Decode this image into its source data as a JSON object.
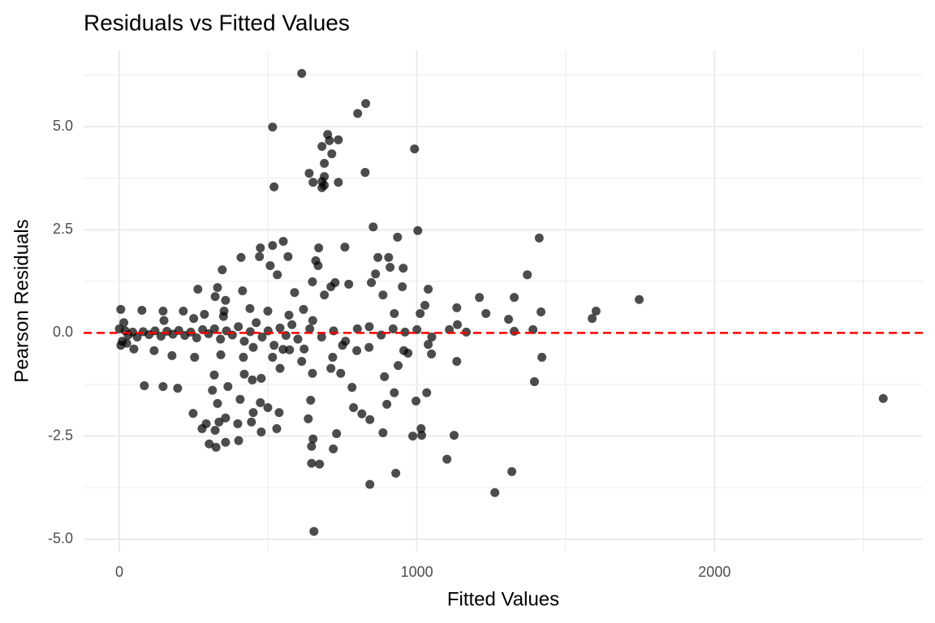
{
  "chart_data": {
    "type": "scatter",
    "title": "Residuals vs Fitted Values",
    "x_label": "Fitted Values",
    "y_label": "Pearson Residuals",
    "xlim": [
      -120,
      2700
    ],
    "ylim": [
      -5.3,
      6.85
    ],
    "xticks": [
      0,
      1000,
      2000
    ],
    "xminor": [
      500,
      1500,
      2500
    ],
    "yticks": [
      {
        "value": -5,
        "label": "-5.0"
      },
      {
        "value": -2.5,
        "label": "-2.5"
      },
      {
        "value": 0,
        "label": "0.0"
      },
      {
        "value": 2.5,
        "label": "2.5"
      },
      {
        "value": 5,
        "label": "5.0"
      }
    ],
    "yminor": [
      -3.75,
      -1.25,
      1.25,
      3.75,
      6.25
    ],
    "grid": true,
    "color": "#000000",
    "opacity": 0.7,
    "hline": {
      "value": 0,
      "color": "#ff0000"
    },
    "x": [
      613,
      801,
      828,
      515,
      700,
      706,
      681,
      736,
      714,
      992,
      689,
      826,
      638,
      689,
      689,
      681,
      736,
      520,
      651,
      681,
      853,
      1003,
      1411,
      935,
      758,
      551,
      515,
      474,
      670,
      471,
      567,
      869,
      905,
      409,
      660,
      507,
      910,
      668,
      346,
      954,
      1371,
      531,
      861,
      649,
      725,
      711,
      951,
      1038,
      264,
      330,
      414,
      771,
      847,
      589,
      689,
      1210,
      1327,
      1747,
      886,
      1027,
      1602,
      1589,
      1308,
      1417,
      1232,
      1011,
      924,
      215,
      147,
      5,
      76,
      352,
      286,
      499,
      570,
      322,
      357,
      439,
      619,
      1134,
      1390,
      1327,
      1136,
      1109,
      1166,
      1420,
      1395,
      1134,
      1049,
      1038,
      970,
      956,
      891,
      937,
      924,
      997,
      1033,
      899,
      815,
      842,
      787,
      744,
      782,
      649,
      711,
      613,
      540,
      477,
      447,
      420,
      319,
      365,
      313,
      406,
      330,
      474,
      499,
      537,
      450,
      444,
      248,
      196,
      147,
      84,
      529,
      477,
      635,
      643,
      398,
      357,
      335,
      292,
      322,
      278,
      302,
      325,
      357,
      401,
      730,
      886,
      986,
      1014,
      1016,
      1125,
      651,
      646,
      719,
      646,
      673,
      1101,
      1319,
      929,
      842,
      1262,
      654,
      2567,
      621,
      572,
      515,
      417,
      341,
      253,
      177,
      117,
      49,
      717,
      798,
      839,
      0,
      10,
      20,
      30,
      45,
      60,
      80,
      100,
      120,
      140,
      160,
      180,
      200,
      220,
      240,
      260,
      280,
      300,
      320,
      340,
      360,
      380,
      400,
      420,
      440,
      460,
      480,
      500,
      520,
      540,
      560,
      580,
      600,
      640,
      680,
      720,
      760,
      800,
      840,
      880,
      920,
      960,
      1000,
      1050,
      5,
      15,
      25,
      150,
      250,
      350,
      450,
      550,
      650,
      750
    ],
    "values": [
      6.29,
      5.32,
      5.56,
      4.99,
      4.81,
      4.66,
      4.52,
      4.68,
      4.34,
      4.46,
      4.11,
      3.89,
      3.87,
      3.79,
      3.58,
      3.52,
      3.65,
      3.54,
      3.65,
      3.67,
      2.57,
      2.48,
      2.3,
      2.32,
      2.08,
      2.22,
      2.12,
      2.06,
      2.06,
      1.85,
      1.85,
      1.83,
      1.83,
      1.83,
      1.75,
      1.63,
      1.59,
      1.63,
      1.53,
      1.57,
      1.41,
      1.41,
      1.43,
      1.24,
      1.22,
      1.12,
      1.12,
      1.06,
      1.06,
      1.1,
      1.02,
      1.18,
      1.22,
      0.98,
      0.92,
      0.86,
      0.86,
      0.81,
      0.92,
      0.67,
      0.53,
      0.35,
      0.33,
      0.51,
      0.47,
      0.47,
      0.47,
      0.53,
      0.53,
      0.57,
      0.55,
      0.53,
      0.45,
      0.53,
      0.43,
      0.88,
      0.79,
      0.59,
      0.57,
      0.61,
      0.08,
      0.04,
      0.2,
      0.08,
      0.02,
      -0.59,
      -1.18,
      -0.69,
      -0.51,
      -0.28,
      -0.49,
      -0.43,
      -1.06,
      -0.79,
      -1.45,
      -1.65,
      -1.45,
      -1.73,
      -1.96,
      -2.1,
      -1.81,
      -0.98,
      -1.32,
      -0.98,
      -0.86,
      -0.69,
      -0.86,
      -1.1,
      -1.14,
      -1,
      -1.02,
      -1.3,
      -1.39,
      -1.61,
      -1.71,
      -1.69,
      -1.81,
      -1.93,
      -1.93,
      -2.16,
      -1.95,
      -1.34,
      -1.3,
      -1.28,
      -2.32,
      -2.4,
      -2.08,
      -1.63,
      -2.2,
      -2.06,
      -2.16,
      -2.2,
      -2.36,
      -2.32,
      -2.69,
      -2.77,
      -2.65,
      -2.61,
      -2.44,
      -2.42,
      -2.5,
      -2.32,
      -2.48,
      -2.48,
      -2.57,
      -2.75,
      -2.81,
      -3.16,
      -3.18,
      -3.06,
      -3.36,
      -3.4,
      -3.67,
      -3.87,
      -4.81,
      -1.59,
      -0.39,
      -0.41,
      -0.59,
      -0.59,
      -0.53,
      -0.59,
      -0.55,
      -0.43,
      -0.39,
      -0.59,
      -0.43,
      -0.35,
      0.1,
      -0.2,
      0.05,
      -0.05,
      0.02,
      -0.1,
      0.03,
      -0.04,
      0.05,
      -0.08,
      0.04,
      -0.03,
      0.06,
      -0.06,
      0.02,
      -0.12,
      0.08,
      -0.02,
      0.1,
      -0.15,
      0.05,
      -0.05,
      0.15,
      -0.2,
      0.03,
      0.25,
      -0.1,
      0.05,
      -0.3,
      0.12,
      -0.06,
      0.2,
      -0.15,
      0.1,
      -0.1,
      0.05,
      -0.2,
      0.1,
      0.15,
      -0.05,
      0.1,
      0.02,
      0.08,
      -0.1,
      -0.3,
      0.25,
      -0.25,
      0.3,
      0.35,
      0.4,
      -0.35,
      -0.4,
      0.3,
      -0.3
    ]
  }
}
